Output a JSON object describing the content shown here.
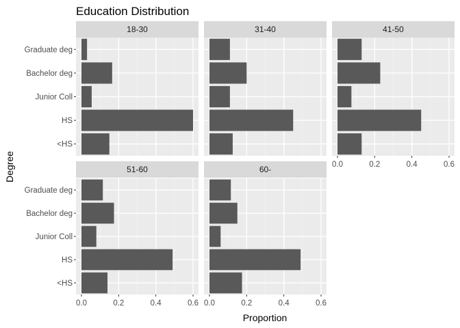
{
  "chart_data": {
    "type": "bar",
    "orientation": "horizontal",
    "faceted": true,
    "title": "Education Distribution",
    "xlabel": "Proportion",
    "ylabel": "Degree",
    "categories": [
      "Graduate deg",
      "Bachelor deg",
      "Junior Coll",
      "HS",
      "<HS"
    ],
    "xlim": [
      0,
      0.6
    ],
    "xticks": [
      0.0,
      0.2,
      0.4,
      0.6
    ],
    "xtick_labels": [
      "0.0",
      "0.2",
      "0.4",
      "0.6"
    ],
    "grid": true,
    "legend": "none",
    "colors": {
      "bar": "#595959",
      "panel": "#ebebeb",
      "strip": "#d9d9d9",
      "grid_major": "#ffffff",
      "grid_minor": "#f5f5f5"
    },
    "facets": [
      {
        "name": "18-30",
        "values": [
          0.03,
          0.165,
          0.055,
          0.6,
          0.15
        ]
      },
      {
        "name": "31-40",
        "values": [
          0.11,
          0.2,
          0.11,
          0.45,
          0.125
        ]
      },
      {
        "name": "41-50",
        "values": [
          0.13,
          0.23,
          0.075,
          0.45,
          0.13
        ]
      },
      {
        "name": "51-60",
        "values": [
          0.115,
          0.175,
          0.08,
          0.49,
          0.14
        ]
      },
      {
        "name": "60-",
        "values": [
          0.115,
          0.15,
          0.06,
          0.49,
          0.175
        ]
      }
    ]
  }
}
